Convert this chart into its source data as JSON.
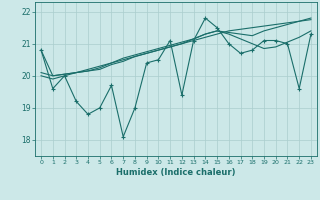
{
  "xlabel": "Humidex (Indice chaleur)",
  "xlim": [
    -0.5,
    23.5
  ],
  "ylim": [
    17.5,
    22.3
  ],
  "yticks": [
    18,
    19,
    20,
    21,
    22
  ],
  "xticks": [
    0,
    1,
    2,
    3,
    4,
    5,
    6,
    7,
    8,
    9,
    10,
    11,
    12,
    13,
    14,
    15,
    16,
    17,
    18,
    19,
    20,
    21,
    22,
    23
  ],
  "bg_color": "#cce8e8",
  "line_color": "#1a6e6a",
  "grid_color": "#aacece",
  "lines": [
    {
      "y": [
        20.8,
        19.6,
        20.0,
        19.2,
        18.8,
        19.0,
        19.7,
        18.1,
        19.0,
        20.4,
        20.5,
        21.1,
        19.4,
        21.1,
        21.8,
        21.5,
        21.0,
        20.7,
        20.8,
        21.1,
        21.1,
        21.0,
        19.6,
        21.3
      ],
      "marker": true
    },
    {
      "y": [
        20.0,
        19.9,
        20.0,
        20.1,
        20.2,
        20.3,
        20.4,
        20.5,
        20.6,
        20.7,
        20.8,
        20.9,
        21.0,
        21.1,
        21.2,
        21.3,
        21.4,
        21.45,
        21.5,
        21.55,
        21.6,
        21.65,
        21.7,
        21.75
      ],
      "marker": false
    },
    {
      "y": [
        20.1,
        20.0,
        20.05,
        20.1,
        20.15,
        20.2,
        20.35,
        20.45,
        20.6,
        20.7,
        20.8,
        20.9,
        21.0,
        21.15,
        21.3,
        21.4,
        21.3,
        21.15,
        21.0,
        20.85,
        20.9,
        21.05,
        21.2,
        21.4
      ],
      "marker": false
    },
    {
      "y": [
        20.8,
        20.0,
        20.05,
        20.1,
        20.15,
        20.25,
        20.4,
        20.55,
        20.65,
        20.75,
        20.85,
        20.95,
        21.05,
        21.15,
        21.3,
        21.4,
        21.35,
        21.3,
        21.25,
        21.4,
        21.5,
        21.6,
        21.7,
        21.8
      ],
      "marker": false
    }
  ]
}
